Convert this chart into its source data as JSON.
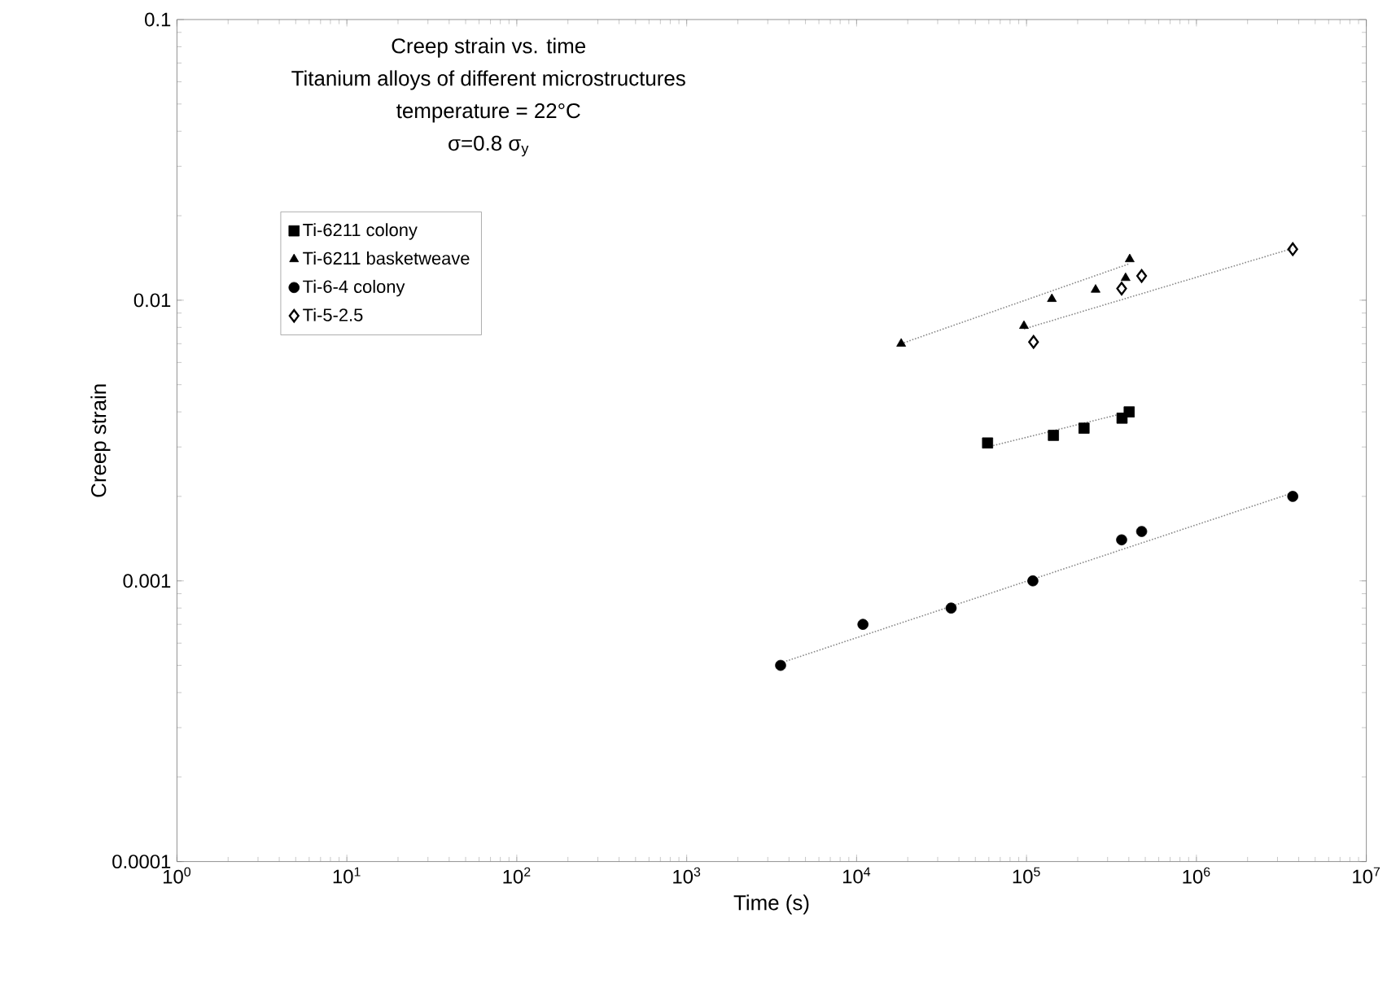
{
  "chart_data": {
    "type": "scatter",
    "title": "Creep strain vs. time",
    "subtitle": "Titanium alloys of different microstructures",
    "annotations": [
      "temperature = 22°C",
      "σ=0.8 σ$_{y}$"
    ],
    "xlabel": "Time (s)",
    "ylabel": "Creep strain",
    "log": "xy",
    "legend": "top left",
    "xlim": [
      1,
      10000000
    ],
    "ylim": [
      0.0001,
      0.1
    ],
    "xticks": [
      {
        "value": 1,
        "label": "10$^{0}$"
      },
      {
        "value": 10,
        "label": "10$^{1}$"
      },
      {
        "value": 100,
        "label": "10$^{2}$"
      },
      {
        "value": 1000,
        "label": "10$^{3}$"
      },
      {
        "value": 10000,
        "label": "10$^{4}$"
      },
      {
        "value": 100000,
        "label": "10$^{5}$"
      },
      {
        "value": 1000000,
        "label": "10$^{6}$"
      },
      {
        "value": 10000000,
        "label": "10$^{7}$"
      }
    ],
    "yticks": [
      0.0001,
      0.001,
      0.01,
      0.1
    ],
    "series": [
      {
        "name": "Ti-6211 colony",
        "color": "#000000",
        "marker": "square",
        "x": [
          59000,
          144000,
          218000,
          365000,
          402000
        ],
        "values": [
          0.0031,
          0.0033,
          0.0035,
          0.0038,
          0.004
        ]
      },
      {
        "name": "Ti-6211 basketweave",
        "color": "#000000",
        "marker": "triangle",
        "x": [
          18300,
          96600,
          141000,
          255000,
          383000,
          405000
        ],
        "values": [
          0.007,
          0.0081,
          0.0101,
          0.0109,
          0.012,
          0.014
        ]
      },
      {
        "name": "Ti-6-4 colony",
        "color": "#000000",
        "marker": "circle",
        "x": [
          3570,
          10900,
          36000,
          109000,
          363000,
          476000,
          3690000
        ],
        "values": [
          0.0005,
          0.0007,
          0.0008,
          0.001,
          0.0014,
          0.0015,
          0.002
        ]
      },
      {
        "name": "Ti-5-2.5",
        "color": "#000000",
        "marker": "diamond",
        "x": [
          110000,
          363000,
          476000,
          3690000
        ],
        "values": [
          0.0071,
          0.011,
          0.0122,
          0.0152
        ]
      },
      {
        "type": "line",
        "color": "#888888",
        "line_style": "dotted",
        "marker": "none",
        "x": [
          59000,
          402000
        ],
        "values": [
          0.003,
          0.004
        ]
      },
      {
        "type": "line",
        "color": "#888888",
        "line_style": "dotted",
        "marker": "none",
        "x": [
          18300,
          405000
        ],
        "values": [
          0.007,
          0.0135
        ]
      },
      {
        "type": "line",
        "color": "#888888",
        "line_style": "dotted",
        "marker": "none",
        "x": [
          3570,
          3690000
        ],
        "values": [
          0.00051,
          0.00206
        ]
      },
      {
        "type": "line",
        "color": "#888888",
        "line_style": "dotted",
        "marker": "none",
        "x": [
          96600,
          3690000
        ],
        "values": [
          0.0079,
          0.0153
        ]
      }
    ]
  }
}
